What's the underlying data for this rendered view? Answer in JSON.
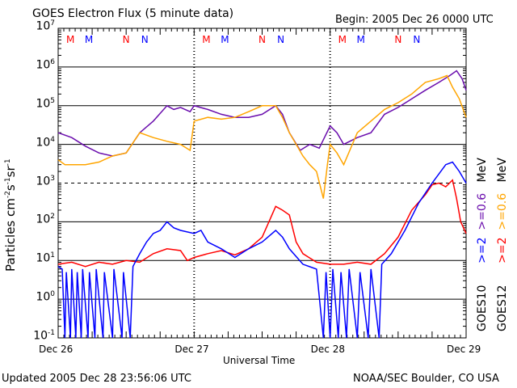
{
  "chart_data": {
    "type": "line",
    "title": "GOES Electron Flux (5 minute data)",
    "begin_label": "Begin: 2005 Dec 26 0000 UTC",
    "xlabel": "Universal Time",
    "ylabel": "Particles cm-2s-1sr-1",
    "ylabel_parts": {
      "base": "Particles cm",
      "e1": "-2",
      "s": "s",
      "e2": "-1",
      "sr": "sr",
      "e3": "-1"
    },
    "y_scale": "log",
    "ylim": [
      0.1,
      10000000
    ],
    "y_ticks": [
      {
        "base": "10",
        "exp": "7"
      },
      {
        "base": "10",
        "exp": "6"
      },
      {
        "base": "10",
        "exp": "5"
      },
      {
        "base": "10",
        "exp": "4"
      },
      {
        "base": "10",
        "exp": "3"
      },
      {
        "base": "10",
        "exp": "2"
      },
      {
        "base": "10",
        "exp": "1"
      },
      {
        "base": "10",
        "exp": "0"
      },
      {
        "base": "10",
        "exp": "-1"
      }
    ],
    "xlim_days": [
      0,
      3
    ],
    "x_ticks": [
      "Dec 26",
      "Dec 27",
      "Dec 28",
      "Dec 29"
    ],
    "markers": [
      {
        "label": "M",
        "color": "#ff0000",
        "offset_day": 0.09
      },
      {
        "label": "M",
        "color": "#0000ff",
        "offset_day": 0.226
      },
      {
        "label": "N",
        "color": "#ff0000",
        "offset_day": 0.5
      },
      {
        "label": "N",
        "color": "#0000ff",
        "offset_day": 0.637
      }
    ],
    "legend": {
      "placement": "right",
      "goes10": {
        "sat": "GOES10",
        "e2": ">=2",
        "e06": ">=0.6",
        "unit": "MeV"
      },
      "goes12": {
        "sat": "GOES12",
        "e2": ">=2",
        "e06": ">=0.6",
        "unit": "MeV"
      }
    },
    "series": [
      {
        "name": "GOES10 >=0.6 MeV",
        "color": "#6a0dad",
        "points": [
          [
            0,
            20000
          ],
          [
            0.1,
            15000
          ],
          [
            0.2,
            9000
          ],
          [
            0.3,
            6000
          ],
          [
            0.4,
            5000
          ],
          [
            0.5,
            6000
          ],
          [
            0.6,
            20000
          ],
          [
            0.7,
            40000
          ],
          [
            0.8,
            100000
          ],
          [
            0.85,
            80000
          ],
          [
            0.9,
            90000
          ],
          [
            0.97,
            70000
          ],
          [
            1.0,
            100000
          ],
          [
            1.1,
            80000
          ],
          [
            1.2,
            60000
          ],
          [
            1.3,
            50000
          ],
          [
            1.4,
            50000
          ],
          [
            1.5,
            60000
          ],
          [
            1.6,
            100000
          ],
          [
            1.65,
            60000
          ],
          [
            1.7,
            20000
          ],
          [
            1.78,
            7000
          ],
          [
            1.85,
            10000
          ],
          [
            1.92,
            8000
          ],
          [
            2.0,
            30000
          ],
          [
            2.05,
            20000
          ],
          [
            2.1,
            10000
          ],
          [
            2.2,
            15000
          ],
          [
            2.3,
            20000
          ],
          [
            2.4,
            60000
          ],
          [
            2.5,
            90000
          ],
          [
            2.6,
            150000
          ],
          [
            2.7,
            250000
          ],
          [
            2.8,
            400000
          ],
          [
            2.88,
            600000
          ],
          [
            2.93,
            800000
          ],
          [
            2.97,
            500000
          ],
          [
            3.0,
            250000
          ]
        ]
      },
      {
        "name": "GOES12 >=0.6 MeV",
        "color": "#ffa500",
        "points": [
          [
            0,
            4000
          ],
          [
            0.05,
            3000
          ],
          [
            0.2,
            3000
          ],
          [
            0.3,
            3500
          ],
          [
            0.4,
            5000
          ],
          [
            0.5,
            6000
          ],
          [
            0.6,
            20000
          ],
          [
            0.7,
            15000
          ],
          [
            0.8,
            12000
          ],
          [
            0.9,
            10000
          ],
          [
            0.97,
            7000
          ],
          [
            1.0,
            40000
          ],
          [
            1.1,
            50000
          ],
          [
            1.2,
            45000
          ],
          [
            1.3,
            50000
          ],
          [
            1.4,
            70000
          ],
          [
            1.5,
            100000
          ],
          [
            1.6,
            100000
          ],
          [
            1.65,
            50000
          ],
          [
            1.7,
            20000
          ],
          [
            1.8,
            5000
          ],
          [
            1.85,
            3000
          ],
          [
            1.9,
            2000
          ],
          [
            1.95,
            400
          ],
          [
            1.98,
            3000
          ],
          [
            2.0,
            10000
          ],
          [
            2.05,
            6000
          ],
          [
            2.1,
            3000
          ],
          [
            2.2,
            20000
          ],
          [
            2.3,
            40000
          ],
          [
            2.4,
            80000
          ],
          [
            2.5,
            120000
          ],
          [
            2.6,
            200000
          ],
          [
            2.7,
            400000
          ],
          [
            2.8,
            500000
          ],
          [
            2.86,
            600000
          ],
          [
            2.9,
            300000
          ],
          [
            2.95,
            150000
          ],
          [
            3.0,
            50000
          ]
        ]
      },
      {
        "name": "GOES12 >=2 MeV",
        "color": "#ff0000",
        "points": [
          [
            0,
            8
          ],
          [
            0.1,
            9
          ],
          [
            0.2,
            7
          ],
          [
            0.3,
            9
          ],
          [
            0.4,
            8
          ],
          [
            0.5,
            10
          ],
          [
            0.6,
            9
          ],
          [
            0.7,
            15
          ],
          [
            0.8,
            20
          ],
          [
            0.9,
            18
          ],
          [
            0.95,
            10
          ],
          [
            1.0,
            12
          ],
          [
            1.1,
            15
          ],
          [
            1.2,
            18
          ],
          [
            1.3,
            14
          ],
          [
            1.4,
            20
          ],
          [
            1.5,
            40
          ],
          [
            1.55,
            100
          ],
          [
            1.6,
            250
          ],
          [
            1.65,
            200
          ],
          [
            1.7,
            150
          ],
          [
            1.75,
            30
          ],
          [
            1.8,
            15
          ],
          [
            1.9,
            9
          ],
          [
            2.0,
            8
          ],
          [
            2.1,
            8
          ],
          [
            2.2,
            9
          ],
          [
            2.3,
            8
          ],
          [
            2.4,
            15
          ],
          [
            2.5,
            40
          ],
          [
            2.6,
            200
          ],
          [
            2.7,
            500
          ],
          [
            2.75,
            900
          ],
          [
            2.8,
            1000
          ],
          [
            2.85,
            800
          ],
          [
            2.9,
            1200
          ],
          [
            2.93,
            400
          ],
          [
            2.96,
            100
          ],
          [
            3.0,
            50
          ]
        ]
      },
      {
        "name": "GOES10 >=2 MeV",
        "color": "#0000ff",
        "points": [
          [
            0,
            7
          ],
          [
            0.03,
            6
          ],
          [
            0.05,
            0.1
          ],
          [
            0.06,
            5
          ],
          [
            0.09,
            0.1
          ],
          [
            0.1,
            6
          ],
          [
            0.13,
            0.1
          ],
          [
            0.14,
            5
          ],
          [
            0.17,
            0.1
          ],
          [
            0.18,
            6
          ],
          [
            0.22,
            0.1
          ],
          [
            0.23,
            5
          ],
          [
            0.27,
            0.1
          ],
          [
            0.28,
            6
          ],
          [
            0.33,
            0.1
          ],
          [
            0.34,
            5
          ],
          [
            0.4,
            0.1
          ],
          [
            0.41,
            6
          ],
          [
            0.47,
            0.1
          ],
          [
            0.48,
            5
          ],
          [
            0.53,
            0.1
          ],
          [
            0.55,
            7
          ],
          [
            0.6,
            15
          ],
          [
            0.65,
            30
          ],
          [
            0.7,
            50
          ],
          [
            0.75,
            60
          ],
          [
            0.8,
            100
          ],
          [
            0.85,
            70
          ],
          [
            0.9,
            60
          ],
          [
            1.0,
            50
          ],
          [
            1.05,
            60
          ],
          [
            1.1,
            30
          ],
          [
            1.2,
            20
          ],
          [
            1.3,
            12
          ],
          [
            1.4,
            20
          ],
          [
            1.5,
            30
          ],
          [
            1.6,
            60
          ],
          [
            1.65,
            40
          ],
          [
            1.7,
            20
          ],
          [
            1.8,
            8
          ],
          [
            1.9,
            6
          ],
          [
            1.95,
            0.1
          ],
          [
            1.97,
            5
          ],
          [
            2.0,
            0.1
          ],
          [
            2.02,
            6
          ],
          [
            2.06,
            0.1
          ],
          [
            2.08,
            5
          ],
          [
            2.12,
            0.1
          ],
          [
            2.14,
            6
          ],
          [
            2.2,
            0.1
          ],
          [
            2.22,
            5
          ],
          [
            2.28,
            0.1
          ],
          [
            2.3,
            6
          ],
          [
            2.36,
            0.1
          ],
          [
            2.38,
            8
          ],
          [
            2.45,
            15
          ],
          [
            2.55,
            60
          ],
          [
            2.65,
            300
          ],
          [
            2.75,
            1000
          ],
          [
            2.85,
            3000
          ],
          [
            2.9,
            3500
          ],
          [
            2.95,
            2000
          ],
          [
            3.0,
            1000
          ]
        ]
      }
    ]
  },
  "footer": {
    "updated": "Updated 2005 Dec 28 23:56:06 UTC",
    "credit": "NOAA/SEC Boulder, CO USA"
  }
}
